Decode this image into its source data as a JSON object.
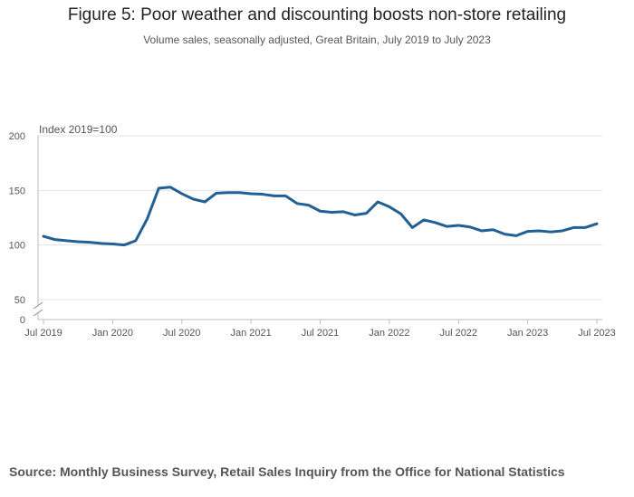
{
  "chart_data": {
    "type": "line",
    "title": "Figure 5: Poor weather and discounting boosts non-store retailing",
    "subtitle": "Volume sales, seasonally adjusted, Great Britain, July 2019 to July 2023",
    "ylabel": "Index 2019=100",
    "xlabel": "",
    "ylim": [
      0,
      200
    ],
    "y_ticks": [
      0,
      50,
      100,
      150,
      200
    ],
    "axis_break": "between 0 and 50",
    "x_tick_labels": [
      "Jul 2019",
      "Jan 2020",
      "Jul 2020",
      "Jan 2021",
      "Jul 2021",
      "Jan 2022",
      "Jul 2022",
      "Jan 2023",
      "Jul 2023"
    ],
    "x_tick_months": [
      0,
      6,
      12,
      18,
      24,
      30,
      36,
      42,
      48
    ],
    "grid": true,
    "colors": {
      "line": "#206095",
      "grid": "#e3e3e3",
      "axis": "#bebebe"
    },
    "series": [
      {
        "name": "Non-store retailing",
        "x": [
          "Jul 2019",
          "Aug 2019",
          "Sep 2019",
          "Oct 2019",
          "Nov 2019",
          "Dec 2019",
          "Jan 2020",
          "Feb 2020",
          "Mar 2020",
          "Apr 2020",
          "May 2020",
          "Jun 2020",
          "Jul 2020",
          "Aug 2020",
          "Sep 2020",
          "Oct 2020",
          "Nov 2020",
          "Dec 2020",
          "Jan 2021",
          "Feb 2021",
          "Mar 2021",
          "Apr 2021",
          "May 2021",
          "Jun 2021",
          "Jul 2021",
          "Aug 2021",
          "Sep 2021",
          "Oct 2021",
          "Nov 2021",
          "Dec 2021",
          "Jan 2022",
          "Feb 2022",
          "Mar 2022",
          "Apr 2022",
          "May 2022",
          "Jun 2022",
          "Jul 2022",
          "Aug 2022",
          "Sep 2022",
          "Oct 2022",
          "Nov 2022",
          "Dec 2022",
          "Jan 2023",
          "Feb 2023",
          "Mar 2023",
          "Apr 2023",
          "May 2023",
          "Jun 2023",
          "Jul 2023"
        ],
        "values": [
          108,
          105,
          104,
          103,
          102.5,
          101.5,
          101,
          100,
          104,
          124,
          152,
          153,
          147,
          142,
          139.5,
          147.5,
          148,
          148,
          147,
          146.5,
          145,
          145,
          138,
          136.5,
          131,
          130,
          130.5,
          127.5,
          129,
          139.5,
          135,
          128.5,
          116,
          123,
          120.5,
          117,
          118,
          116.5,
          113,
          114,
          110,
          108.5,
          112.5,
          113,
          112,
          113,
          116,
          116,
          119.5
        ]
      }
    ]
  },
  "source": "Source: Monthly Business Survey, Retail Sales Inquiry from the Office for National Statistics"
}
